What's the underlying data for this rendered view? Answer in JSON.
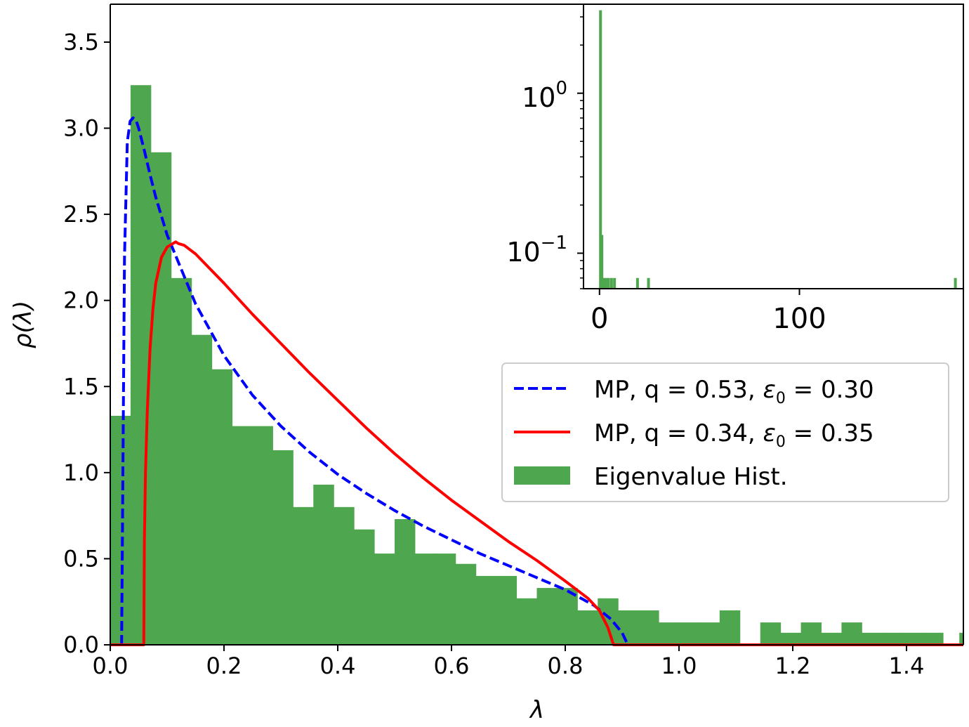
{
  "chart_data": [
    {
      "type": "bar+line",
      "xlabel": "λ",
      "ylabel": "ρ(λ)",
      "xlim": [
        0.0,
        1.5
      ],
      "ylim": [
        0.0,
        3.72
      ],
      "xticks": [
        0.0,
        0.2,
        0.4,
        0.6,
        0.8,
        1.0,
        1.2,
        1.4
      ],
      "xtick_labels": [
        "0.0",
        "0.2",
        "0.4",
        "0.6",
        "0.8",
        "1.0",
        "1.2",
        "1.4"
      ],
      "yticks": [
        0.0,
        0.5,
        1.0,
        1.5,
        2.0,
        2.5,
        3.0,
        3.5
      ],
      "ytick_labels": [
        "0.0",
        "0.5",
        "1.0",
        "1.5",
        "2.0",
        "2.5",
        "3.0",
        "3.5"
      ],
      "grid": false,
      "legend_position": "center-right",
      "histogram": {
        "name": "Eigenvalue Hist.",
        "color": "#4ea64e",
        "bin_edges": [
          0.0,
          0.0357,
          0.0714,
          0.1071,
          0.1429,
          0.1786,
          0.2143,
          0.25,
          0.2857,
          0.3214,
          0.3571,
          0.3929,
          0.4286,
          0.4643,
          0.5,
          0.5357,
          0.5714,
          0.6071,
          0.6429,
          0.6786,
          0.7143,
          0.75,
          0.7857,
          0.8214,
          0.8571,
          0.8929,
          0.9286,
          0.9643,
          1.0,
          1.0357,
          1.0714,
          1.1071,
          1.1429,
          1.1786,
          1.2143,
          1.25,
          1.2857,
          1.3214,
          1.3571,
          1.3929,
          1.4286,
          1.4643
        ],
        "values": [
          1.33,
          3.25,
          2.86,
          2.13,
          1.8,
          1.6,
          1.27,
          1.27,
          1.13,
          0.8,
          0.93,
          0.8,
          0.67,
          0.53,
          0.73,
          0.53,
          0.53,
          0.47,
          0.4,
          0.4,
          0.27,
          0.33,
          0.33,
          0.2,
          0.27,
          0.2,
          0.2,
          0.13,
          0.13,
          0.13,
          0.2,
          0.0,
          0.13,
          0.07,
          0.13,
          0.07,
          0.13,
          0.07,
          0.07,
          0.07,
          0.07
        ],
        "extra_bins": [
          {
            "x": 1.4929,
            "value": 0.07
          }
        ]
      },
      "series": [
        {
          "name": "MP, q = 0.53, ε0 = 0.30",
          "color": "#0000ff",
          "dash": "dashed",
          "q": 0.53,
          "epsilon0": 0.3,
          "x": [
            0.02,
            0.025,
            0.03,
            0.035,
            0.04,
            0.045,
            0.05,
            0.06,
            0.07,
            0.08,
            0.1,
            0.12,
            0.15,
            0.2,
            0.25,
            0.3,
            0.35,
            0.4,
            0.45,
            0.5,
            0.55,
            0.6,
            0.65,
            0.7,
            0.75,
            0.8,
            0.85,
            0.88,
            0.9,
            0.91
          ],
          "y": [
            0.0,
            2.25,
            2.92,
            3.04,
            3.06,
            3.05,
            3.0,
            2.87,
            2.73,
            2.6,
            2.38,
            2.22,
            1.98,
            1.68,
            1.45,
            1.27,
            1.12,
            0.99,
            0.88,
            0.78,
            0.69,
            0.61,
            0.53,
            0.46,
            0.39,
            0.32,
            0.23,
            0.15,
            0.07,
            0.0
          ]
        },
        {
          "name": "MP, q = 0.34, ε0 = 0.35",
          "color": "#ff0000",
          "dash": "solid",
          "q": 0.34,
          "epsilon0": 0.35,
          "x": [
            0.0,
            0.059,
            0.06,
            0.062,
            0.065,
            0.07,
            0.075,
            0.08,
            0.09,
            0.1,
            0.11,
            0.115,
            0.12,
            0.13,
            0.15,
            0.2,
            0.25,
            0.3,
            0.35,
            0.4,
            0.45,
            0.5,
            0.55,
            0.6,
            0.65,
            0.7,
            0.75,
            0.8,
            0.84,
            0.86,
            0.875,
            0.885,
            1.5
          ],
          "y": [
            0.0,
            0.0,
            0.6,
            1.0,
            1.35,
            1.72,
            1.95,
            2.1,
            2.25,
            2.31,
            2.33,
            2.34,
            2.33,
            2.32,
            2.27,
            2.1,
            1.92,
            1.75,
            1.58,
            1.42,
            1.26,
            1.11,
            0.97,
            0.84,
            0.72,
            0.6,
            0.49,
            0.37,
            0.27,
            0.2,
            0.1,
            0.0,
            0.0
          ]
        }
      ]
    },
    {
      "type": "bar",
      "role": "inset",
      "xscale": "linear",
      "yscale": "log",
      "xlim": [
        -8,
        182
      ],
      "ylim": [
        0.06,
        3.6
      ],
      "xticks": [
        0,
        100
      ],
      "xtick_labels": [
        "0",
        "100"
      ],
      "yticks": [
        1,
        0.1
      ],
      "ytick_labels": [
        "10^0",
        "10^-1"
      ],
      "series": [
        {
          "name": "",
          "color": "#4ea64e",
          "x": [
            0.5,
            1.2,
            2.0,
            3.2,
            4.5,
            6.0,
            7.5,
            19,
            24.5,
            178
          ],
          "values": [
            3.3,
            0.13,
            0.07,
            0.07,
            0.07,
            0.07,
            0.07,
            0.07,
            0.07,
            0.07
          ]
        }
      ]
    }
  ],
  "legend": {
    "entries": [
      {
        "prefix": "MP, q = 0.53, ",
        "eps": "ε",
        "sub": "0",
        "suffix": " = 0.30"
      },
      {
        "prefix": "MP, q = 0.34, ",
        "eps": "ε",
        "sub": "0",
        "suffix": " = 0.35"
      },
      {
        "label": "Eigenvalue Hist."
      }
    ]
  },
  "inset_labels": {
    "y_major_base": "10",
    "y_major_exp_0": "0",
    "y_major_exp_1": "−1"
  }
}
